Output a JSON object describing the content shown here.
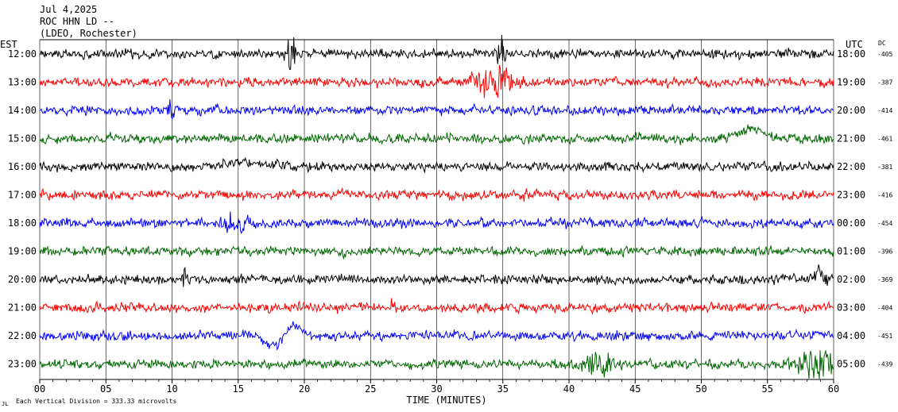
{
  "header": {
    "date": "Jul 4,2025",
    "station": "ROC HHN LD --",
    "network": "(LDEO, Rochester)"
  },
  "labels": {
    "left_tz": "EST",
    "right_tz": "UTC",
    "dc_header": "DC",
    "x_axis": "TIME (MINUTES)",
    "scale_note": "Each Vertical Division =  333.33 microvolts",
    "scale_glyph": "JL"
  },
  "chart_data": {
    "type": "line",
    "title": "",
    "xlabel": "TIME (MINUTES)",
    "xlim": [
      0,
      60
    ],
    "x_ticks": [
      "00",
      "05",
      "10",
      "15",
      "20",
      "25",
      "30",
      "35",
      "40",
      "45",
      "50",
      "55",
      "60"
    ],
    "grid": "vertical",
    "rows": [
      {
        "est": "12:00",
        "utc": "18:00",
        "dc": "-405",
        "color": "#000000",
        "events": [
          {
            "t": 19.0,
            "amp": 3.0,
            "dur": 0.3
          },
          {
            "t": 34.8,
            "amp": 2.5,
            "dur": 0.3
          }
        ]
      },
      {
        "est": "13:00",
        "utc": "19:00",
        "dc": "-387",
        "color": "#ff0000",
        "events": [
          {
            "t": 34.2,
            "amp": 2.2,
            "dur": 1.5
          }
        ]
      },
      {
        "est": "14:00",
        "utc": "20:00",
        "dc": "-414",
        "color": "#0000ff",
        "events": [
          {
            "t": 10.0,
            "amp": 1.8,
            "dur": 0.4
          }
        ]
      },
      {
        "est": "15:00",
        "utc": "21:00",
        "dc": "-461",
        "color": "#006600",
        "events": [
          {
            "t": 53.8,
            "amp": 1.6,
            "dur": 1.2,
            "shape": "bump"
          }
        ]
      },
      {
        "est": "16:00",
        "utc": "22:00",
        "dc": "-381",
        "color": "#000000",
        "events": [
          {
            "t": 15.8,
            "amp": 0.7,
            "dur": 2.0,
            "shape": "bump"
          }
        ]
      },
      {
        "est": "17:00",
        "utc": "23:00",
        "dc": "-416",
        "color": "#ff0000",
        "events": [
          {
            "t": 36.5,
            "amp": 1.2,
            "dur": 0.3
          }
        ]
      },
      {
        "est": "18:00",
        "utc": "00:00",
        "dc": "-454",
        "color": "#0000ff",
        "events": [
          {
            "t": 14.8,
            "amp": 1.5,
            "dur": 1.0
          }
        ]
      },
      {
        "est": "19:00",
        "utc": "01:00",
        "dc": "-396",
        "color": "#006600",
        "events": []
      },
      {
        "est": "20:00",
        "utc": "02:00",
        "dc": "-369",
        "color": "#000000",
        "events": [
          {
            "t": 11.0,
            "amp": 1.5,
            "dur": 0.3
          },
          {
            "t": 59.0,
            "amp": 1.4,
            "dur": 0.4
          }
        ]
      },
      {
        "est": "21:00",
        "utc": "03:00",
        "dc": "-404",
        "color": "#ff0000",
        "events": [
          {
            "t": 26.8,
            "amp": 1.2,
            "dur": 0.3
          }
        ]
      },
      {
        "est": "22:00",
        "utc": "04:00",
        "dc": "-451",
        "color": "#0000ff",
        "events": [
          {
            "t": 18.5,
            "amp": 2.0,
            "dur": 1.6,
            "shape": "wave"
          }
        ]
      },
      {
        "est": "23:00",
        "utc": "05:00",
        "dc": "-439",
        "color": "#006600",
        "events": [
          {
            "t": 42.0,
            "amp": 1.4,
            "dur": 1.5
          },
          {
            "t": 58.8,
            "amp": 2.0,
            "dur": 2.0
          }
        ]
      }
    ]
  }
}
